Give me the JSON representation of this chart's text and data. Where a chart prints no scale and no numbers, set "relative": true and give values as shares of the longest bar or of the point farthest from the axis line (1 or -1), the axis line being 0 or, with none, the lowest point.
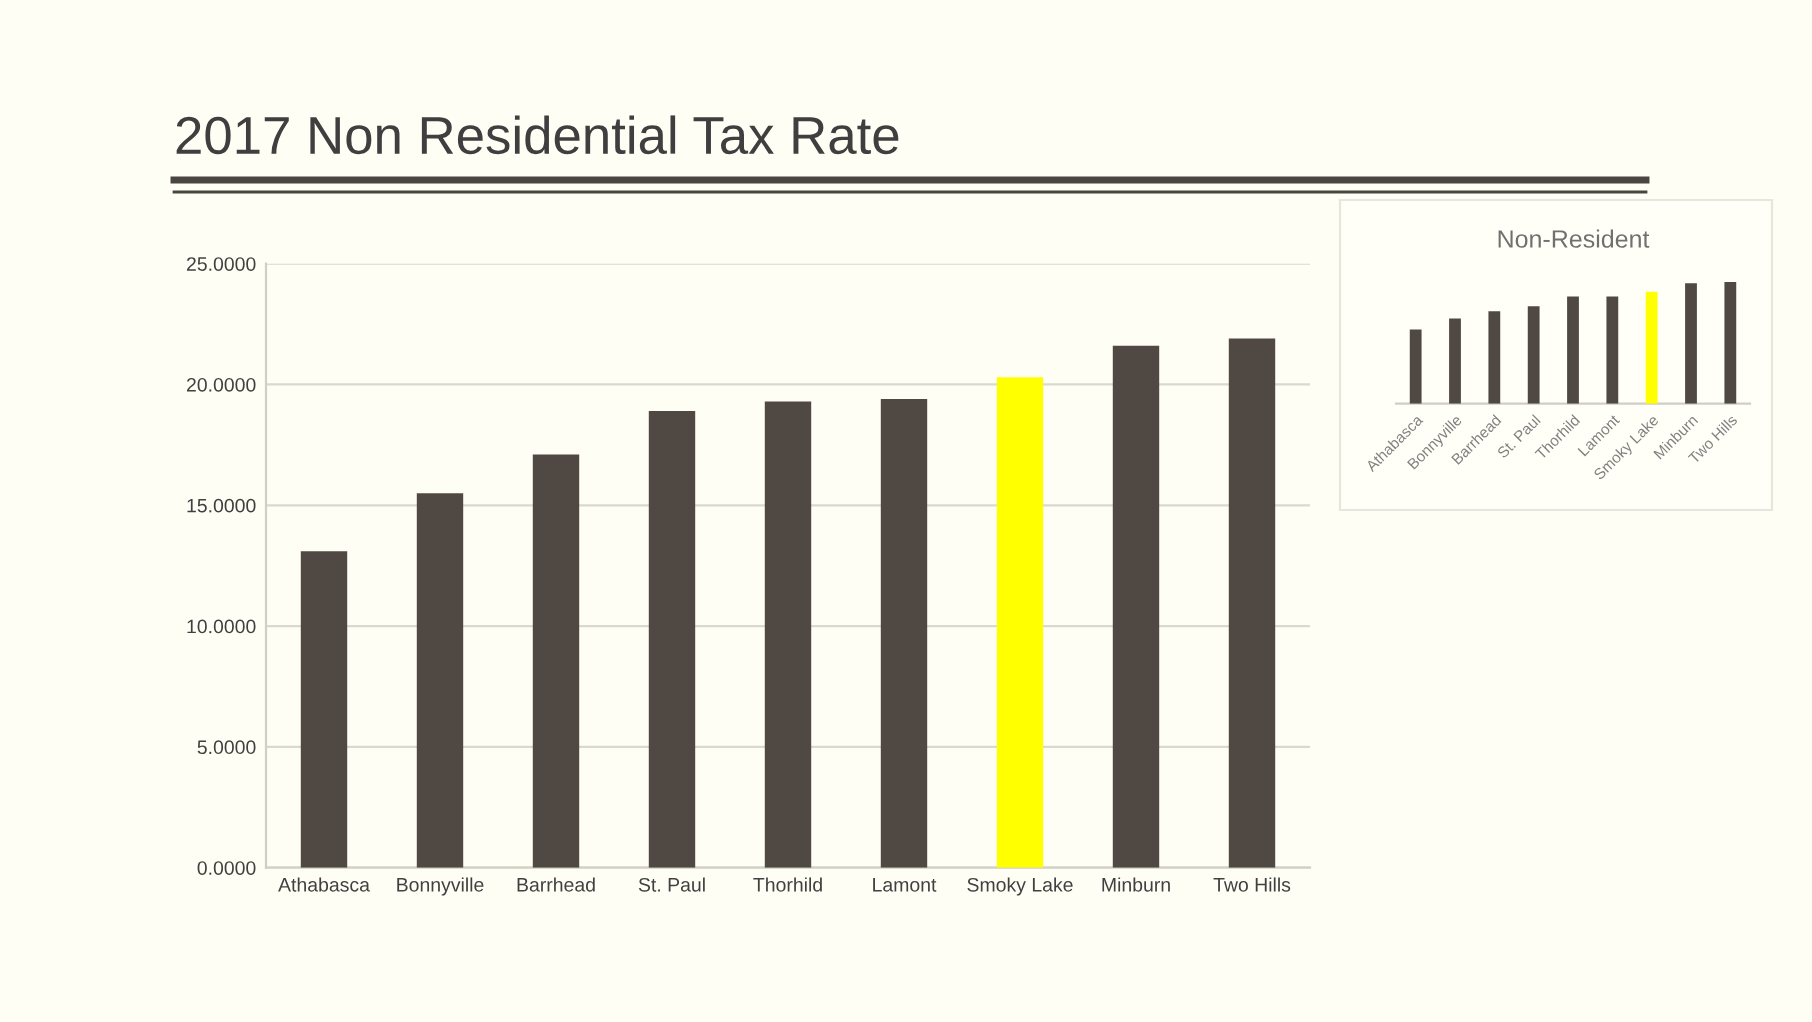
{
  "chart_data": [
    {
      "type": "bar",
      "title": "2017 Non Residential Tax Rate",
      "categories": [
        "Athabasca",
        "Bonnyville",
        "Barrhead",
        "St. Paul",
        "Thorhild",
        "Lamont",
        "Smoky Lake",
        "Minburn",
        "Two Hills"
      ],
      "values": [
        13.1,
        15.5,
        17.1,
        18.9,
        19.3,
        19.4,
        20.3,
        21.6,
        21.9
      ],
      "colors": [
        "#504843",
        "#504843",
        "#504843",
        "#504843",
        "#504843",
        "#504843",
        "#ffff00",
        "#504843",
        "#504843"
      ],
      "ylim": [
        0,
        25
      ],
      "yticks": [
        {
          "value": 0,
          "label": "0.0000"
        },
        {
          "value": 5,
          "label": "5.0000"
        },
        {
          "value": 10,
          "label": "10.0000"
        },
        {
          "value": 15,
          "label": "15.0000"
        },
        {
          "value": 20,
          "label": "20.0000"
        },
        {
          "value": 25,
          "label": "25.0000"
        }
      ],
      "grid": "y"
    },
    {
      "type": "bar",
      "title": "Non-Resident",
      "relative": true,
      "categories": [
        "Athabasca",
        "Bonnyville",
        "Barrhead",
        "St. Paul",
        "Thorhild",
        "Lamont",
        "Smoky Lake",
        "Minburn",
        "Two Hills"
      ],
      "values": [
        0.61,
        0.7,
        0.76,
        0.8,
        0.88,
        0.88,
        0.92,
        0.99,
        1
      ],
      "colors": [
        "#504843",
        "#504843",
        "#504843",
        "#504843",
        "#504843",
        "#504843",
        "#ffff00",
        "#504843",
        "#504843"
      ]
    }
  ]
}
